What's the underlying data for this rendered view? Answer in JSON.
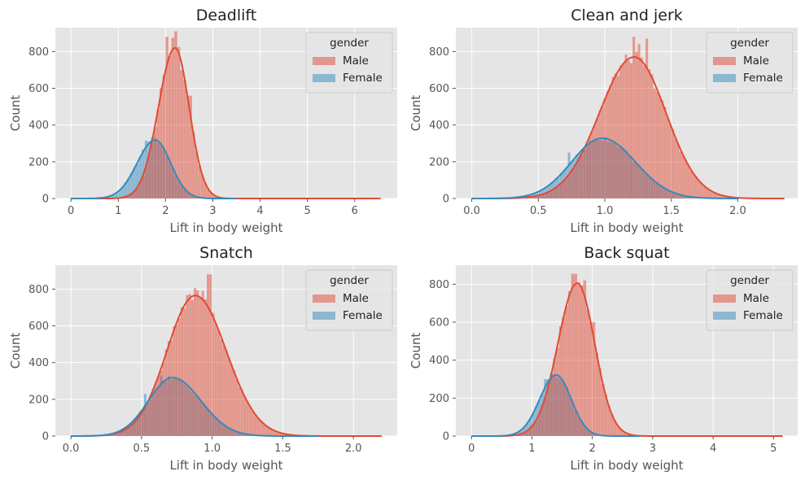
{
  "figure": {
    "legend_title": "gender",
    "colors": {
      "male_fill": "#e24a33",
      "male_line": "#e24a33",
      "female_fill": "#348abd",
      "female_line": "#348abd",
      "axes_bg": "#e5e5e5",
      "grid": "#ffffff"
    }
  },
  "chart_data": [
    {
      "type": "histogram",
      "title": "Deadlift",
      "xlabel": "Lift in body weight",
      "ylabel": "Count",
      "xlim": [
        -0.33,
        6.9
      ],
      "ylim": [
        0,
        930
      ],
      "xticks": [
        0,
        1,
        2,
        3,
        4,
        5,
        6
      ],
      "xtick_labels": [
        "0",
        "1",
        "2",
        "3",
        "4",
        "5",
        "6"
      ],
      "yticks": [
        0,
        200,
        400,
        600,
        800
      ],
      "ytick_labels": [
        "0",
        "200",
        "400",
        "600",
        "800"
      ],
      "grid": true,
      "legend": "top-right",
      "bin_width": 0.0625,
      "series": [
        {
          "name": "Male",
          "kde": {
            "mean": 2.2,
            "sd_left": 0.35,
            "sd_right": 0.3,
            "peak": 820,
            "range": [
              0.0,
              6.55
            ]
          },
          "spikes": [
            [
              2.03,
              880
            ],
            [
              2.16,
              875
            ],
            [
              2.22,
              910
            ],
            [
              2.35,
              700
            ],
            [
              2.5,
              560
            ]
          ]
        },
        {
          "name": "Female",
          "kde": {
            "mean": 1.78,
            "sd_left": 0.38,
            "sd_right": 0.33,
            "peak": 318,
            "range": [
              0.0,
              3.5
            ]
          },
          "spikes": [
            [
              1.7,
              330
            ],
            [
              1.6,
              315
            ]
          ]
        }
      ]
    },
    {
      "type": "histogram",
      "title": "Clean and jerk",
      "xlabel": "Lift in body weight",
      "ylabel": "Count",
      "xlim": [
        -0.12,
        2.45
      ],
      "ylim": [
        0,
        930
      ],
      "xticks": [
        0.0,
        0.5,
        1.0,
        1.5,
        2.0
      ],
      "xtick_labels": [
        "0.0",
        "0.5",
        "1.0",
        "1.5",
        "2.0"
      ],
      "yticks": [
        0,
        200,
        400,
        600,
        800
      ],
      "ytick_labels": [
        "0",
        "200",
        "400",
        "600",
        "800"
      ],
      "grid": true,
      "legend": "top-right",
      "bin_width": 0.0195,
      "series": [
        {
          "name": "Male",
          "kde": {
            "mean": 1.22,
            "sd_left": 0.26,
            "sd_right": 0.24,
            "peak": 770,
            "range": [
              0.0,
              2.35
            ]
          },
          "spikes": [
            [
              1.21,
              880
            ],
            [
              1.31,
              870
            ],
            [
              1.25,
              840
            ]
          ]
        },
        {
          "name": "Female",
          "kde": {
            "mean": 0.98,
            "sd_left": 0.23,
            "sd_right": 0.25,
            "peak": 328,
            "range": [
              0.0,
              2.0
            ]
          },
          "spikes": [
            [
              0.74,
              250
            ]
          ]
        }
      ]
    },
    {
      "type": "histogram",
      "title": "Snatch",
      "xlabel": "Lift in body weight",
      "ylabel": "Count",
      "xlim": [
        -0.11,
        2.31
      ],
      "ylim": [
        0,
        930
      ],
      "xticks": [
        0.0,
        0.5,
        1.0,
        1.5,
        2.0
      ],
      "xtick_labels": [
        "0.0",
        "0.5",
        "1.0",
        "1.5",
        "2.0"
      ],
      "yticks": [
        0,
        200,
        400,
        600,
        800
      ],
      "ytick_labels": [
        "0",
        "200",
        "400",
        "600",
        "800"
      ],
      "grid": true,
      "legend": "top-right",
      "bin_width": 0.0185,
      "series": [
        {
          "name": "Male",
          "kde": {
            "mean": 0.88,
            "sd_left": 0.2,
            "sd_right": 0.22,
            "peak": 765,
            "range": [
              0.0,
              2.2
            ]
          },
          "spikes": [
            [
              0.98,
              880
            ],
            [
              0.93,
              790
            ],
            [
              0.88,
              805
            ]
          ]
        },
        {
          "name": "Female",
          "kde": {
            "mean": 0.72,
            "sd_left": 0.17,
            "sd_right": 0.2,
            "peak": 318,
            "range": [
              0.0,
              1.75
            ]
          },
          "spikes": [
            [
              0.64,
              330
            ],
            [
              0.53,
              230
            ]
          ]
        }
      ]
    },
    {
      "type": "histogram",
      "title": "Back squat",
      "xlabel": "Lift in body weight",
      "ylabel": "Count",
      "xlim": [
        -0.26,
        5.4
      ],
      "ylim": [
        0,
        900
      ],
      "xticks": [
        0,
        1,
        2,
        3,
        4,
        5
      ],
      "xtick_labels": [
        "0",
        "1",
        "2",
        "3",
        "4",
        "5"
      ],
      "yticks": [
        0,
        200,
        400,
        600,
        800
      ],
      "ytick_labels": [
        "0",
        "200",
        "400",
        "600",
        "800"
      ],
      "grid": true,
      "legend": "top-right",
      "bin_width": 0.05,
      "series": [
        {
          "name": "Male",
          "kde": {
            "mean": 1.75,
            "sd_left": 0.32,
            "sd_right": 0.29,
            "peak": 805,
            "range": [
              0.0,
              5.15
            ]
          },
          "spikes": [
            [
              1.7,
              855
            ],
            [
              1.88,
              820
            ],
            [
              2.0,
              600
            ]
          ]
        },
        {
          "name": "Female",
          "kde": {
            "mean": 1.4,
            "sd_left": 0.27,
            "sd_right": 0.25,
            "peak": 322,
            "range": [
              0.0,
              2.8
            ]
          },
          "spikes": [
            [
              1.25,
              300
            ]
          ]
        }
      ]
    }
  ]
}
